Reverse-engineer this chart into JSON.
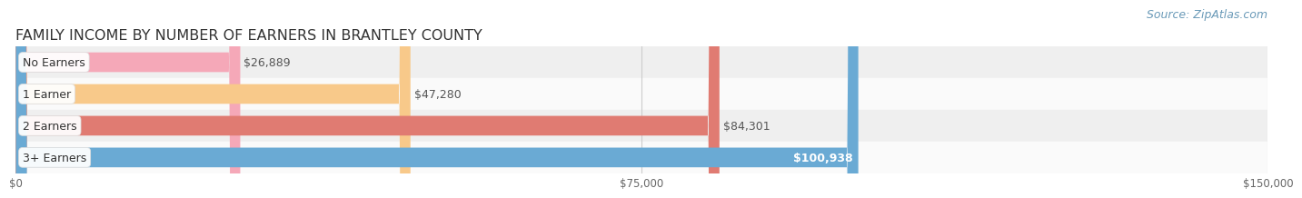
{
  "title": "FAMILY INCOME BY NUMBER OF EARNERS IN BRANTLEY COUNTY",
  "source": "Source: ZipAtlas.com",
  "categories": [
    "No Earners",
    "1 Earner",
    "2 Earners",
    "3+ Earners"
  ],
  "values": [
    26889,
    47280,
    84301,
    100938
  ],
  "bar_colors": [
    "#f5a8b8",
    "#f8c98a",
    "#e07b72",
    "#6aaad4"
  ],
  "value_labels": [
    "$26,889",
    "$47,280",
    "$84,301",
    "$100,938"
  ],
  "value_inside": [
    false,
    false,
    false,
    true
  ],
  "xlim": [
    0,
    150000
  ],
  "xtick_vals": [
    0,
    75000,
    150000
  ],
  "xtick_labels": [
    "$0",
    "$75,000",
    "$150,000"
  ],
  "bar_height": 0.62,
  "row_bg_even": "#efefef",
  "row_bg_odd": "#fafafa",
  "title_fontsize": 11.5,
  "label_fontsize": 9,
  "value_fontsize": 9,
  "source_fontsize": 9
}
